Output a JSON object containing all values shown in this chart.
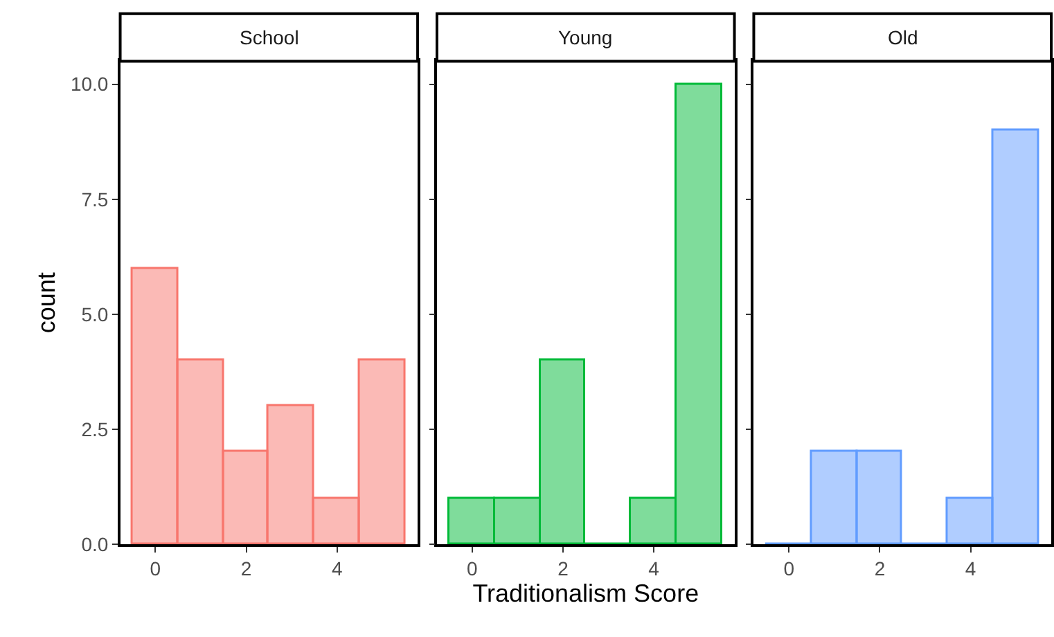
{
  "chart_data": [
    {
      "type": "histogram",
      "title": "School",
      "ylabel": "count",
      "bins": [
        -0.5,
        0.5,
        1.5,
        2.5,
        3.5,
        4.5,
        5.5
      ],
      "values": [
        6,
        4,
        2,
        3,
        1,
        4
      ],
      "color": "#f8766d",
      "xlim": [
        -0.775,
        5.775
      ],
      "xticks": [
        0,
        2,
        4
      ],
      "ylim": [
        0,
        10.5
      ],
      "yticks": [
        {
          "value": 0,
          "label": "0.0"
        },
        {
          "value": 2.5,
          "label": "2.5"
        },
        {
          "value": 5,
          "label": "5.0"
        },
        {
          "value": 7.5,
          "label": "7.5"
        },
        {
          "value": 10,
          "label": "10.0"
        }
      ],
      "grid": false
    },
    {
      "type": "histogram",
      "title": "Young",
      "xlabel": "Traditionalism Score",
      "bins": [
        -0.5,
        0.5,
        1.5,
        2.5,
        3.5,
        4.5,
        5.5
      ],
      "values": [
        1,
        1,
        4,
        0,
        1,
        10
      ],
      "color": "#00ba38",
      "xlim": [
        -0.775,
        5.775
      ],
      "xticks": [
        0,
        2,
        4
      ],
      "ylim": [
        0,
        10.5
      ],
      "yticks": [
        {
          "value": 0,
          "label": null
        },
        {
          "value": 2.5,
          "label": null
        },
        {
          "value": 5,
          "label": null
        },
        {
          "value": 7.5,
          "label": null
        },
        {
          "value": 10,
          "label": null
        }
      ],
      "tick_labels": "x",
      "grid": false
    },
    {
      "type": "histogram",
      "title": "Old",
      "bins": [
        -0.5,
        0.5,
        1.5,
        2.5,
        3.5,
        4.5,
        5.5
      ],
      "values": [
        0,
        2,
        2,
        0,
        1,
        9
      ],
      "color": "#619cff",
      "xlim": [
        -0.775,
        5.775
      ],
      "xticks": [
        0,
        2,
        4
      ],
      "ylim": [
        0,
        10.5
      ],
      "yticks": [
        {
          "value": 0,
          "label": null
        },
        {
          "value": 2.5,
          "label": null
        },
        {
          "value": 5,
          "label": null
        },
        {
          "value": 7.5,
          "label": null
        },
        {
          "value": 10,
          "label": null
        }
      ],
      "tick_labels": "x",
      "grid": false
    }
  ]
}
